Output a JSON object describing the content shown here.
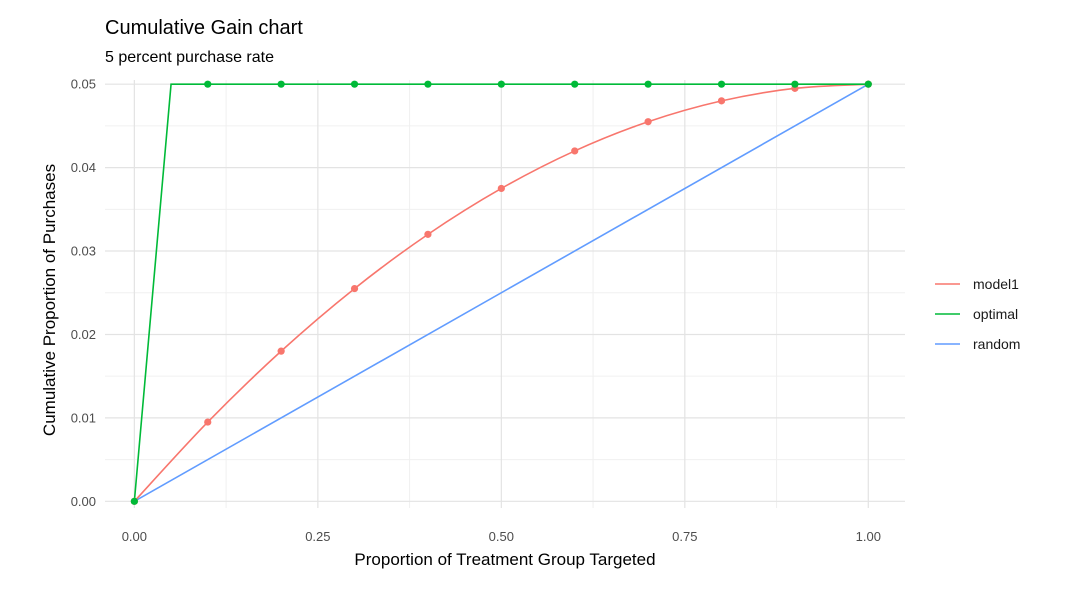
{
  "chart_data": {
    "type": "line",
    "title": "Cumulative Gain chart",
    "subtitle": "5 percent purchase rate",
    "xlabel": "Proportion of Treatment Group Targeted",
    "ylabel": "Cumulative Proportion of Purchases",
    "xlim": [
      -0.04,
      1.05
    ],
    "ylim": [
      -0.0008,
      0.0505
    ],
    "x_ticks": [
      0,
      0.25,
      0.5,
      0.75,
      1
    ],
    "x_tick_labels": [
      "0.00",
      "0.25",
      "0.50",
      "0.75",
      "1.00"
    ],
    "y_ticks": [
      0,
      0.01,
      0.02,
      0.03,
      0.04,
      0.05
    ],
    "y_tick_labels": [
      "0.00",
      "0.01",
      "0.02",
      "0.03",
      "0.04",
      "0.05"
    ],
    "grid": true,
    "legend_position": "right",
    "series": [
      {
        "name": "model1",
        "color": "#F8766D",
        "x": [
          0,
          0.1,
          0.2,
          0.3,
          0.4,
          0.5,
          0.6,
          0.7,
          0.8,
          0.9,
          1.0
        ],
        "y": [
          0,
          0.0095,
          0.018,
          0.0255,
          0.032,
          0.0375,
          0.042,
          0.0455,
          0.048,
          0.0495,
          0.05
        ],
        "points_x": [
          0,
          0.1,
          0.2,
          0.3,
          0.4,
          0.5,
          0.6,
          0.7,
          0.8,
          0.9,
          1.0
        ],
        "points_y": [
          0,
          0.0095,
          0.018,
          0.0255,
          0.032,
          0.0375,
          0.042,
          0.0455,
          0.048,
          0.0495,
          0.05
        ]
      },
      {
        "name": "optimal",
        "color": "#00BA38",
        "x": [
          0,
          0.05,
          0.1,
          0.2,
          0.3,
          0.4,
          0.5,
          0.6,
          0.7,
          0.8,
          0.9,
          1.0
        ],
        "y": [
          0,
          0.05,
          0.05,
          0.05,
          0.05,
          0.05,
          0.05,
          0.05,
          0.05,
          0.05,
          0.05,
          0.05
        ],
        "points_x": [
          0,
          0.1,
          0.2,
          0.3,
          0.4,
          0.5,
          0.6,
          0.7,
          0.8,
          0.9,
          1.0
        ],
        "points_y": [
          0,
          0.05,
          0.05,
          0.05,
          0.05,
          0.05,
          0.05,
          0.05,
          0.05,
          0.05,
          0.05
        ]
      },
      {
        "name": "random",
        "color": "#619CFF",
        "x": [
          0,
          1.0
        ],
        "y": [
          0,
          0.05
        ],
        "points_x": [],
        "points_y": []
      }
    ]
  }
}
